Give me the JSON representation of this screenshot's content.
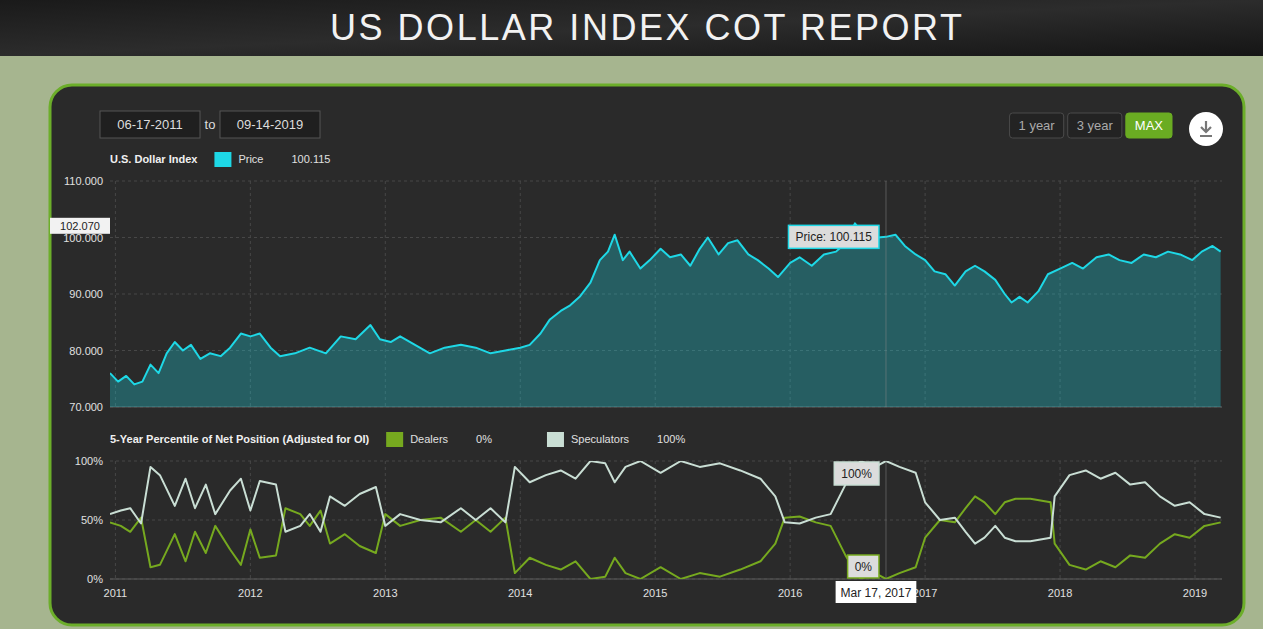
{
  "header": {
    "title": "US DOLLAR INDEX COT REPORT"
  },
  "controls": {
    "from": "06-17-2011",
    "to_label": "to",
    "until": "09-14-2019",
    "ranges": [
      "1 year",
      "3 year",
      "MAX"
    ],
    "active": "MAX"
  },
  "chart_data": [
    {
      "type": "area",
      "title": "U.S. Dollar Index",
      "x": [
        2010.96,
        2011.02,
        2011.08,
        2011.14,
        2011.2,
        2011.26,
        2011.32,
        2011.38,
        2011.44,
        2011.5,
        2011.56,
        2011.63,
        2011.7,
        2011.78,
        2011.85,
        2011.93,
        2012.0,
        2012.07,
        2012.15,
        2012.22,
        2012.33,
        2012.44,
        2012.56,
        2012.67,
        2012.78,
        2012.89,
        2012.96,
        2013.04,
        2013.11,
        2013.22,
        2013.33,
        2013.44,
        2013.56,
        2013.67,
        2013.78,
        2013.89,
        2014.0,
        2014.07,
        2014.15,
        2014.22,
        2014.3,
        2014.37,
        2014.44,
        2014.52,
        2014.59,
        2014.65,
        2014.7,
        2014.76,
        2014.81,
        2014.89,
        2014.96,
        2015.04,
        2015.11,
        2015.19,
        2015.26,
        2015.33,
        2015.39,
        2015.47,
        2015.54,
        2015.61,
        2015.69,
        2015.76,
        2015.84,
        2015.91,
        2016.0,
        2016.07,
        2016.16,
        2016.25,
        2016.34,
        2016.41,
        2016.48,
        2016.53,
        2016.59,
        2016.65,
        2016.71,
        2016.78,
        2016.85,
        2016.93,
        2017.0,
        2017.07,
        2017.15,
        2017.22,
        2017.3,
        2017.37,
        2017.44,
        2017.52,
        2017.59,
        2017.64,
        2017.7,
        2017.76,
        2017.84,
        2017.91,
        2018.0,
        2018.09,
        2018.17,
        2018.27,
        2018.36,
        2018.44,
        2018.53,
        2018.62,
        2018.71,
        2018.8,
        2018.89,
        2018.98,
        2019.05,
        2019.13,
        2019.19
      ],
      "series": [
        {
          "name": "Price",
          "color": "#1ed8e6",
          "readout": "100.115",
          "values": [
            76,
            74.5,
            75.5,
            74,
            74.5,
            77.5,
            76,
            79.5,
            81.5,
            80,
            81,
            78.5,
            79.5,
            79,
            80.5,
            83,
            82.5,
            83,
            80.5,
            79,
            79.5,
            80.5,
            79.5,
            82.5,
            82,
            84.5,
            82,
            81.5,
            82.5,
            81,
            79.5,
            80.5,
            81,
            80.5,
            79.5,
            80,
            80.5,
            81,
            83,
            85.5,
            87,
            88,
            89.5,
            92,
            96,
            97.5,
            100.5,
            96,
            97.5,
            94.5,
            96,
            98,
            96.5,
            97,
            95,
            98,
            100,
            97,
            99,
            99.5,
            97,
            96,
            94.5,
            93,
            95.5,
            96.5,
            95,
            97,
            97.5,
            99,
            102.5,
            101,
            99,
            100,
            100.115,
            100.5,
            98.5,
            97,
            96,
            94,
            93.5,
            91.5,
            94,
            95,
            94,
            92.5,
            90,
            88.5,
            89.5,
            88.5,
            90.5,
            93.5,
            94.5,
            95.5,
            94.5,
            96.5,
            97,
            96,
            95.5,
            97,
            96.5,
            97.5,
            97,
            96,
            97.5,
            98.5,
            97.5
          ]
        }
      ],
      "xlim": [
        2010.96,
        2019.2
      ],
      "xticks": [
        2011,
        2012,
        2013,
        2014,
        2015,
        2016,
        2017,
        2018,
        2019
      ],
      "ylim": [
        70,
        110
      ],
      "yticks": [
        {
          "value": 70,
          "label": "70.000"
        },
        {
          "value": 80,
          "label": "80.000"
        },
        {
          "value": 90,
          "label": "90.000"
        },
        {
          "value": 100,
          "label": "100.000"
        },
        {
          "value": 110,
          "label": "110.000"
        }
      ],
      "grid": true,
      "tick_labels": "y",
      "legend": "top",
      "annotations": [
        {
          "text": "Price: 100.115",
          "x": 2016.71,
          "y": 100.115
        },
        {
          "label": "102.070",
          "y": 102.07
        }
      ]
    },
    {
      "type": "line",
      "title": "5-Year Percentile of Net Position (Adjusted for OI)",
      "x": [
        2010.96,
        2011.04,
        2011.11,
        2011.19,
        2011.26,
        2011.33,
        2011.44,
        2011.52,
        2011.59,
        2011.67,
        2011.74,
        2011.85,
        2011.93,
        2012.0,
        2012.07,
        2012.19,
        2012.26,
        2012.37,
        2012.44,
        2012.52,
        2012.59,
        2012.7,
        2012.81,
        2012.93,
        2013.0,
        2013.11,
        2013.26,
        2013.41,
        2013.56,
        2013.67,
        2013.78,
        2013.89,
        2013.96,
        2014.07,
        2014.19,
        2014.3,
        2014.41,
        2014.52,
        2014.63,
        2014.7,
        2014.78,
        2014.89,
        2015.04,
        2015.19,
        2015.33,
        2015.48,
        2015.63,
        2015.78,
        2015.89,
        2015.96,
        2016.07,
        2016.19,
        2016.3,
        2016.41,
        2016.52,
        2016.63,
        2016.71,
        2016.81,
        2016.93,
        2017.0,
        2017.11,
        2017.22,
        2017.3,
        2017.37,
        2017.44,
        2017.52,
        2017.59,
        2017.67,
        2017.78,
        2017.93,
        2017.96,
        2018.07,
        2018.19,
        2018.3,
        2018.41,
        2018.52,
        2018.63,
        2018.74,
        2018.85,
        2018.96,
        2019.07,
        2019.19
      ],
      "series": [
        {
          "name": "Dealers",
          "color": "#76a91f",
          "readout": "0%",
          "values": [
            48,
            45,
            40,
            52,
            10,
            12,
            38,
            15,
            40,
            22,
            45,
            25,
            12,
            42,
            18,
            20,
            60,
            55,
            45,
            58,
            30,
            38,
            28,
            22,
            55,
            45,
            50,
            52,
            40,
            50,
            40,
            52,
            5,
            18,
            12,
            8,
            15,
            0,
            2,
            18,
            5,
            0,
            10,
            0,
            5,
            2,
            8,
            15,
            30,
            52,
            53,
            48,
            45,
            20,
            0,
            5,
            0,
            5,
            10,
            35,
            50,
            48,
            60,
            70,
            65,
            55,
            65,
            68,
            68,
            65,
            30,
            12,
            8,
            15,
            10,
            20,
            18,
            30,
            38,
            35,
            45,
            48
          ]
        },
        {
          "name": "Speculators",
          "color": "#c9ded4",
          "readout": "100%",
          "values": [
            55,
            58,
            60,
            47,
            95,
            88,
            62,
            85,
            60,
            80,
            55,
            75,
            85,
            58,
            83,
            80,
            40,
            45,
            55,
            40,
            70,
            62,
            72,
            78,
            45,
            55,
            50,
            48,
            60,
            50,
            60,
            48,
            95,
            82,
            88,
            92,
            85,
            100,
            98,
            82,
            95,
            100,
            90,
            100,
            95,
            98,
            92,
            85,
            70,
            48,
            47,
            52,
            55,
            80,
            100,
            95,
            100,
            95,
            90,
            65,
            50,
            52,
            40,
            30,
            35,
            45,
            35,
            32,
            32,
            35,
            70,
            88,
            92,
            85,
            90,
            80,
            82,
            70,
            62,
            65,
            55,
            52
          ]
        }
      ],
      "xlim": [
        2010.96,
        2019.2
      ],
      "xticks": [
        2011,
        2012,
        2013,
        2014,
        2015,
        2016,
        2017,
        2018,
        2019
      ],
      "ylim": [
        0,
        100
      ],
      "yticks": [
        {
          "value": 0,
          "label": "0%"
        },
        {
          "value": 50,
          "label": "50%"
        },
        {
          "value": 100,
          "label": "100%"
        }
      ],
      "grid": true,
      "legend": "top",
      "annotations": [
        {
          "text": "100%",
          "x": 2016.71,
          "y": 100
        },
        {
          "text": "0%",
          "x": 2016.71,
          "y": 0
        },
        {
          "text": "Mar 17, 2017",
          "x": 2016.71
        }
      ]
    }
  ]
}
